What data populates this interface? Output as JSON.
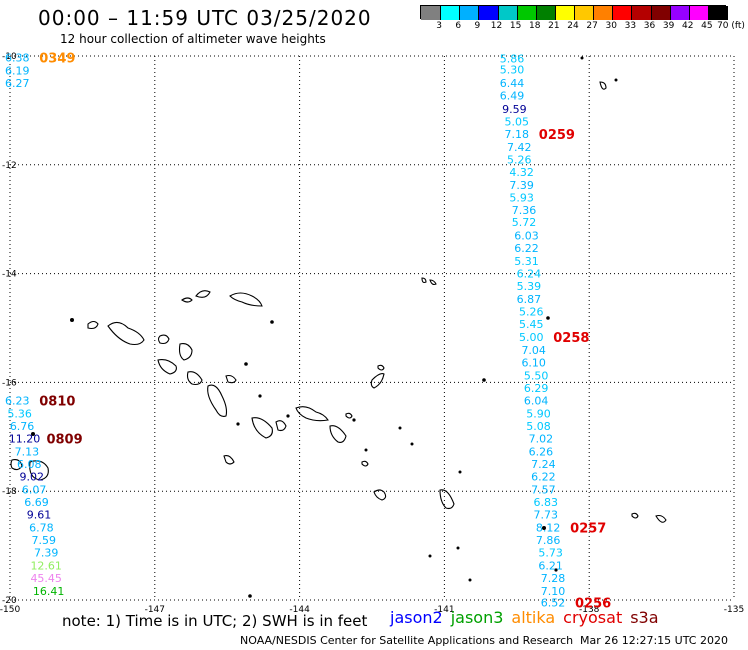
{
  "header": {
    "title": "00:00 – 11:59 UTC 03/25/2020",
    "subtitle": "12 hour collection of altimeter wave heights"
  },
  "legend": {
    "colors": [
      "#808080",
      "#00ffff",
      "#00b0ff",
      "#0000ff",
      "#00c8c8",
      "#00c800",
      "#008000",
      "#ffff00",
      "#ffc800",
      "#ff8000",
      "#ff0000",
      "#b40000",
      "#800000",
      "#9600ff",
      "#ff00ff",
      "#000000"
    ],
    "ticks": [
      "3",
      "6",
      "9",
      "12",
      "15",
      "18",
      "21",
      "24",
      "27",
      "30",
      "33",
      "36",
      "39",
      "42",
      "45",
      "70 (ft)"
    ]
  },
  "axes": {
    "lat": [
      {
        "label": "-10",
        "value": -10
      },
      {
        "label": "-12",
        "value": -12
      },
      {
        "label": "-14",
        "value": -14
      },
      {
        "label": "-16",
        "value": -16
      },
      {
        "label": "-18",
        "value": -18
      },
      {
        "label": "-20",
        "value": -20
      }
    ],
    "lon": [
      {
        "label": "-150",
        "value": -150
      },
      {
        "label": "-147",
        "value": -147
      },
      {
        "label": "-144",
        "value": -144
      },
      {
        "label": "-141",
        "value": -141
      },
      {
        "label": "-138",
        "value": -138
      },
      {
        "label": "-135",
        "value": -135
      }
    ]
  },
  "tracks": [
    {
      "id": "track-west-top",
      "time_label": "0349",
      "time_color": "#ff8c00",
      "points": [
        {
          "lon": -149.85,
          "lat": -10.03,
          "v": "6.38",
          "c": "#00b4ff"
        },
        {
          "lon": -149.85,
          "lat": -10.27,
          "v": "6.19",
          "c": "#00b4ff"
        },
        {
          "lon": -149.85,
          "lat": -10.5,
          "v": "6.27",
          "c": "#00b4ff"
        }
      ]
    },
    {
      "id": "track-east-0259",
      "time_label": "0259",
      "time_color": "#e00000",
      "points": [
        {
          "lon": -139.6,
          "lat": -10.05,
          "v": "5.86",
          "c": "#00c8ff"
        },
        {
          "lon": -139.6,
          "lat": -10.25,
          "v": "5.30",
          "c": "#00c8ff"
        },
        {
          "lon": -139.6,
          "lat": -10.5,
          "v": "6.44",
          "c": "#00b4ff"
        },
        {
          "lon": -139.6,
          "lat": -10.73,
          "v": "6.49",
          "c": "#00b4ff"
        },
        {
          "lon": -139.55,
          "lat": -10.97,
          "v": "9.59",
          "c": "#000096"
        },
        {
          "lon": -139.5,
          "lat": -11.2,
          "v": "5.05",
          "c": "#00c8ff"
        },
        {
          "lon": -139.5,
          "lat": -11.43,
          "v": "7.18",
          "c": "#00b4ff"
        },
        {
          "lon": -139.45,
          "lat": -11.67,
          "v": "7.42",
          "c": "#00b4ff"
        },
        {
          "lon": -139.45,
          "lat": -11.9,
          "v": "5.26",
          "c": "#00c8ff"
        },
        {
          "lon": -139.4,
          "lat": -12.13,
          "v": "4.32",
          "c": "#00c8ff"
        },
        {
          "lon": -139.4,
          "lat": -12.37,
          "v": "7.39",
          "c": "#00b4ff"
        },
        {
          "lon": -139.4,
          "lat": -12.6,
          "v": "5.93",
          "c": "#00c8ff"
        },
        {
          "lon": -139.35,
          "lat": -12.83,
          "v": "7.36",
          "c": "#00b4ff"
        },
        {
          "lon": -139.35,
          "lat": -13.05,
          "v": "5.72",
          "c": "#00c8ff"
        },
        {
          "lon": -139.3,
          "lat": -13.3,
          "v": "6.03",
          "c": "#00b4ff"
        },
        {
          "lon": -139.3,
          "lat": -13.53,
          "v": "6.22",
          "c": "#00b4ff"
        },
        {
          "lon": -139.3,
          "lat": -13.77,
          "v": "5.31",
          "c": "#00c8ff"
        },
        {
          "lon": -139.25,
          "lat": -14.0,
          "v": "6.24",
          "c": "#00c8ff"
        },
        {
          "lon": -139.25,
          "lat": -14.23,
          "v": "5.39",
          "c": "#00c8ff"
        },
        {
          "lon": -139.25,
          "lat": -14.47,
          "v": "6.87",
          "c": "#00b4ff"
        }
      ]
    },
    {
      "id": "track-east-0258",
      "time_label": "0258",
      "time_color": "#e00000",
      "points": [
        {
          "lon": -139.2,
          "lat": -14.7,
          "v": "5.26",
          "c": "#00c8ff"
        },
        {
          "lon": -139.2,
          "lat": -14.93,
          "v": "5.45",
          "c": "#00c8ff"
        },
        {
          "lon": -139.2,
          "lat": -15.17,
          "v": "5.00",
          "c": "#00c8ff"
        },
        {
          "lon": -139.15,
          "lat": -15.4,
          "v": "7.04",
          "c": "#00b4ff"
        },
        {
          "lon": -139.15,
          "lat": -15.63,
          "v": "6.10",
          "c": "#00b4ff"
        },
        {
          "lon": -139.1,
          "lat": -15.87,
          "v": "5.50",
          "c": "#00c8ff"
        },
        {
          "lon": -139.1,
          "lat": -16.1,
          "v": "6.29",
          "c": "#00c8ff"
        },
        {
          "lon": -139.1,
          "lat": -16.33,
          "v": "6.04",
          "c": "#00b4ff"
        },
        {
          "lon": -139.05,
          "lat": -16.57,
          "v": "5.90",
          "c": "#00c8ff"
        },
        {
          "lon": -139.05,
          "lat": -16.8,
          "v": "5.08",
          "c": "#00c8ff"
        },
        {
          "lon": -139.0,
          "lat": -17.03,
          "v": "7.02",
          "c": "#00b4ff"
        },
        {
          "lon": -139.0,
          "lat": -17.27,
          "v": "6.26",
          "c": "#00b4ff"
        },
        {
          "lon": -138.95,
          "lat": -17.5,
          "v": "7.24",
          "c": "#00b4ff"
        },
        {
          "lon": -138.95,
          "lat": -17.73,
          "v": "6.22",
          "c": "#00b4ff"
        },
        {
          "lon": -138.95,
          "lat": -17.97,
          "v": "7.57",
          "c": "#00b4ff"
        },
        {
          "lon": -138.9,
          "lat": -18.2,
          "v": "6.83",
          "c": "#00c8ff"
        }
      ]
    },
    {
      "id": "track-east-0257",
      "time_label": "0257",
      "time_color": "#e00000",
      "points": [
        {
          "lon": -138.9,
          "lat": -18.43,
          "v": "7.73",
          "c": "#00b4ff"
        },
        {
          "lon": -138.85,
          "lat": -18.67,
          "v": "8.12",
          "c": "#00b4ff"
        },
        {
          "lon": -138.85,
          "lat": -18.9,
          "v": "7.86",
          "c": "#00b4ff"
        },
        {
          "lon": -138.8,
          "lat": -19.13,
          "v": "5.73",
          "c": "#00c8ff"
        },
        {
          "lon": -138.8,
          "lat": -19.37,
          "v": "6.21",
          "c": "#00b4ff"
        },
        {
          "lon": -138.75,
          "lat": -19.6,
          "v": "7.28",
          "c": "#00b4ff"
        },
        {
          "lon": -138.75,
          "lat": -19.83,
          "v": "7.10",
          "c": "#00b4ff"
        }
      ]
    },
    {
      "id": "track-east-0256",
      "time_label": "0256",
      "time_color": "#e00000",
      "points": [
        {
          "lon": -138.75,
          "lat": -20.05,
          "v": "6.52",
          "c": "#00b4ff"
        }
      ]
    },
    {
      "id": "track-west-0810",
      "time_label": "0810",
      "time_color": "#800000",
      "points": [
        {
          "lon": -149.85,
          "lat": -16.33,
          "v": "6.23",
          "c": "#00b4ff"
        },
        {
          "lon": -149.8,
          "lat": -16.57,
          "v": "5.36",
          "c": "#00c8ff"
        },
        {
          "lon": -149.75,
          "lat": -16.8,
          "v": "6.76",
          "c": "#00b4ff"
        }
      ]
    },
    {
      "id": "track-west-0809",
      "time_label": "0809",
      "time_color": "#800000",
      "points": [
        {
          "lon": -149.7,
          "lat": -17.03,
          "v": "11.20",
          "c": "#000096"
        },
        {
          "lon": -149.65,
          "lat": -17.27,
          "v": "7.13",
          "c": "#00b4ff"
        },
        {
          "lon": -149.6,
          "lat": -17.5,
          "v": "6.08",
          "c": "#00b4ff"
        },
        {
          "lon": -149.55,
          "lat": -17.73,
          "v": "9.02",
          "c": "#000096"
        },
        {
          "lon": -149.5,
          "lat": -17.97,
          "v": "6.07",
          "c": "#00b4ff"
        },
        {
          "lon": -149.45,
          "lat": -18.2,
          "v": "6.69",
          "c": "#00b4ff"
        },
        {
          "lon": -149.4,
          "lat": -18.43,
          "v": "9.61",
          "c": "#000096"
        },
        {
          "lon": -149.35,
          "lat": -18.67,
          "v": "6.78",
          "c": "#00b4ff"
        },
        {
          "lon": -149.3,
          "lat": -18.9,
          "v": "7.59",
          "c": "#00b4ff"
        },
        {
          "lon": -149.25,
          "lat": -19.13,
          "v": "7.39",
          "c": "#00b4ff"
        },
        {
          "lon": -149.25,
          "lat": -19.37,
          "v": "12.61",
          "c": "#90ee60"
        },
        {
          "lon": -149.25,
          "lat": -19.6,
          "v": "45.45",
          "c": "#ee82ee"
        },
        {
          "lon": -149.2,
          "lat": -19.83,
          "v": "16.41",
          "c": "#00b400"
        }
      ]
    }
  ],
  "footer": {
    "note": "note: 1) Time is in UTC; 2) SWH is in feet",
    "satellites": [
      {
        "name": "jason2",
        "color": "#0000ff"
      },
      {
        "name": "jason3",
        "color": "#00a000"
      },
      {
        "name": "altika",
        "color": "#ff8c00"
      },
      {
        "name": "cryosat",
        "color": "#e00000"
      },
      {
        "name": "s3a",
        "color": "#800000"
      }
    ],
    "credit": "NOAA/NESDIS Center for Satellite Applications and Research",
    "timestamp": "Mar 26 12:27:15 UTC 2020"
  }
}
